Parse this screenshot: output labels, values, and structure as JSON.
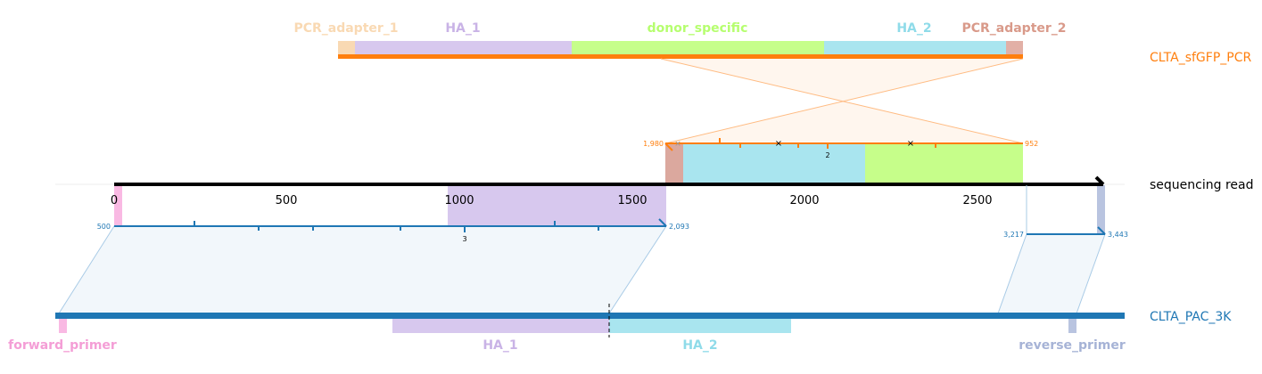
{
  "tracks": {
    "donor_name": "CLTA_sfGFP_PCR",
    "read_name": "sequencing read",
    "genome_name": "CLTA_PAC_3K"
  },
  "donor_features": [
    {
      "name": "PCR_adapter_1",
      "color": "#f9d9b3"
    },
    {
      "name": "HA_1",
      "color": "#c9b3e6"
    },
    {
      "name": "donor_specific",
      "color": "#b6fe6f"
    },
    {
      "name": "HA_2",
      "color": "#8fdbe9"
    },
    {
      "name": "PCR_adapter_2",
      "color": "#d99a8a"
    }
  ],
  "genome_features": [
    {
      "name": "forward_primer",
      "color": "#f49ed6"
    },
    {
      "name": "HA_1",
      "color": "#c9b3e6"
    },
    {
      "name": "HA_2",
      "color": "#8fdbe9"
    },
    {
      "name": "reverse_primer",
      "color": "#a6b3d6"
    }
  ],
  "read_axis": {
    "ticks": [
      "0",
      "500",
      "1000",
      "1500",
      "2000",
      "2500"
    ]
  },
  "alignments": {
    "donor": {
      "start_label": "1,980",
      "end_label": "952",
      "edit_label": "2",
      "color": "#ff7f0e"
    },
    "genome_left": {
      "start_label": "500",
      "end_label": "2,093",
      "edit_label": "3",
      "color": "#1f77b4"
    },
    "genome_right": {
      "start_label": "3,217",
      "end_label": "3,443",
      "color": "#1f77b4"
    }
  },
  "colors": {
    "donor_track": "#ff7f0e",
    "genome_track": "#1f77b4",
    "read_track": "#000000"
  }
}
